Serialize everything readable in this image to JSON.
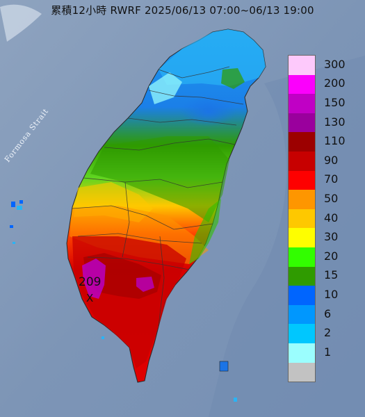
{
  "title": "累積12小時 RWRF 2025/06/13 07:00~06/13 19:00",
  "strait_label": "Formosa Strait",
  "max_marker": {
    "value": "209",
    "symbol": "X"
  },
  "legend": {
    "items": [
      {
        "label": "300",
        "color": "#fdc9fb"
      },
      {
        "label": "200",
        "color": "#fb00fc"
      },
      {
        "label": "150",
        "color": "#c000c5"
      },
      {
        "label": "130",
        "color": "#9a009d"
      },
      {
        "label": "110",
        "color": "#9c0000"
      },
      {
        "label": "90",
        "color": "#c70000"
      },
      {
        "label": "70",
        "color": "#fe0000"
      },
      {
        "label": "50",
        "color": "#fe9600"
      },
      {
        "label": "40",
        "color": "#fec800"
      },
      {
        "label": "30",
        "color": "#fefe00"
      },
      {
        "label": "20",
        "color": "#32fe00"
      },
      {
        "label": "15",
        "color": "#2f9b00"
      },
      {
        "label": "10",
        "color": "#0065fe"
      },
      {
        "label": "6",
        "color": "#0097fe"
      },
      {
        "label": "2",
        "color": "#00c7fe"
      },
      {
        "label": "1",
        "color": "#9bfefe"
      },
      {
        "label": "",
        "color": "#c2c2c2"
      }
    ]
  }
}
